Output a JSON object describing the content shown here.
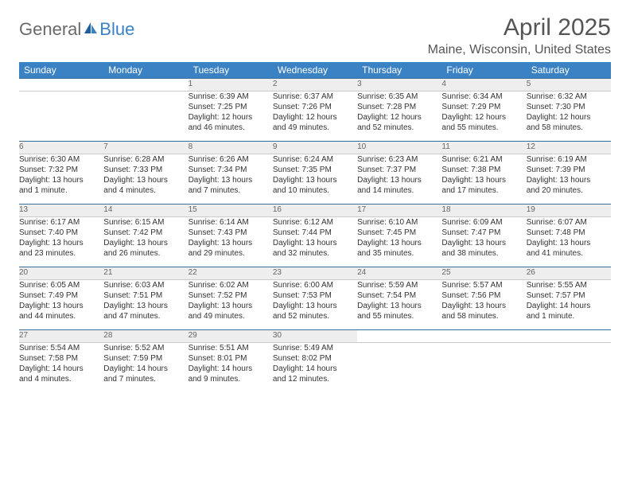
{
  "brand": {
    "general": "General",
    "blue": "Blue"
  },
  "title": "April 2025",
  "location": "Maine, Wisconsin, United States",
  "weekdays": [
    "Sunday",
    "Monday",
    "Tuesday",
    "Wednesday",
    "Thursday",
    "Friday",
    "Saturday"
  ],
  "colors": {
    "header_bg": "#3b82c4",
    "header_text": "#ffffff",
    "daynum_bg": "#eeeeee",
    "row_divider": "#3b6d99",
    "text": "#333333"
  },
  "weeks": [
    {
      "days": [
        null,
        null,
        {
          "n": "1",
          "sunrise": "Sunrise: 6:39 AM",
          "sunset": "Sunset: 7:25 PM",
          "day1": "Daylight: 12 hours",
          "day2": "and 46 minutes."
        },
        {
          "n": "2",
          "sunrise": "Sunrise: 6:37 AM",
          "sunset": "Sunset: 7:26 PM",
          "day1": "Daylight: 12 hours",
          "day2": "and 49 minutes."
        },
        {
          "n": "3",
          "sunrise": "Sunrise: 6:35 AM",
          "sunset": "Sunset: 7:28 PM",
          "day1": "Daylight: 12 hours",
          "day2": "and 52 minutes."
        },
        {
          "n": "4",
          "sunrise": "Sunrise: 6:34 AM",
          "sunset": "Sunset: 7:29 PM",
          "day1": "Daylight: 12 hours",
          "day2": "and 55 minutes."
        },
        {
          "n": "5",
          "sunrise": "Sunrise: 6:32 AM",
          "sunset": "Sunset: 7:30 PM",
          "day1": "Daylight: 12 hours",
          "day2": "and 58 minutes."
        }
      ]
    },
    {
      "days": [
        {
          "n": "6",
          "sunrise": "Sunrise: 6:30 AM",
          "sunset": "Sunset: 7:32 PM",
          "day1": "Daylight: 13 hours",
          "day2": "and 1 minute."
        },
        {
          "n": "7",
          "sunrise": "Sunrise: 6:28 AM",
          "sunset": "Sunset: 7:33 PM",
          "day1": "Daylight: 13 hours",
          "day2": "and 4 minutes."
        },
        {
          "n": "8",
          "sunrise": "Sunrise: 6:26 AM",
          "sunset": "Sunset: 7:34 PM",
          "day1": "Daylight: 13 hours",
          "day2": "and 7 minutes."
        },
        {
          "n": "9",
          "sunrise": "Sunrise: 6:24 AM",
          "sunset": "Sunset: 7:35 PM",
          "day1": "Daylight: 13 hours",
          "day2": "and 10 minutes."
        },
        {
          "n": "10",
          "sunrise": "Sunrise: 6:23 AM",
          "sunset": "Sunset: 7:37 PM",
          "day1": "Daylight: 13 hours",
          "day2": "and 14 minutes."
        },
        {
          "n": "11",
          "sunrise": "Sunrise: 6:21 AM",
          "sunset": "Sunset: 7:38 PM",
          "day1": "Daylight: 13 hours",
          "day2": "and 17 minutes."
        },
        {
          "n": "12",
          "sunrise": "Sunrise: 6:19 AM",
          "sunset": "Sunset: 7:39 PM",
          "day1": "Daylight: 13 hours",
          "day2": "and 20 minutes."
        }
      ]
    },
    {
      "days": [
        {
          "n": "13",
          "sunrise": "Sunrise: 6:17 AM",
          "sunset": "Sunset: 7:40 PM",
          "day1": "Daylight: 13 hours",
          "day2": "and 23 minutes."
        },
        {
          "n": "14",
          "sunrise": "Sunrise: 6:15 AM",
          "sunset": "Sunset: 7:42 PM",
          "day1": "Daylight: 13 hours",
          "day2": "and 26 minutes."
        },
        {
          "n": "15",
          "sunrise": "Sunrise: 6:14 AM",
          "sunset": "Sunset: 7:43 PM",
          "day1": "Daylight: 13 hours",
          "day2": "and 29 minutes."
        },
        {
          "n": "16",
          "sunrise": "Sunrise: 6:12 AM",
          "sunset": "Sunset: 7:44 PM",
          "day1": "Daylight: 13 hours",
          "day2": "and 32 minutes."
        },
        {
          "n": "17",
          "sunrise": "Sunrise: 6:10 AM",
          "sunset": "Sunset: 7:45 PM",
          "day1": "Daylight: 13 hours",
          "day2": "and 35 minutes."
        },
        {
          "n": "18",
          "sunrise": "Sunrise: 6:09 AM",
          "sunset": "Sunset: 7:47 PM",
          "day1": "Daylight: 13 hours",
          "day2": "and 38 minutes."
        },
        {
          "n": "19",
          "sunrise": "Sunrise: 6:07 AM",
          "sunset": "Sunset: 7:48 PM",
          "day1": "Daylight: 13 hours",
          "day2": "and 41 minutes."
        }
      ]
    },
    {
      "days": [
        {
          "n": "20",
          "sunrise": "Sunrise: 6:05 AM",
          "sunset": "Sunset: 7:49 PM",
          "day1": "Daylight: 13 hours",
          "day2": "and 44 minutes."
        },
        {
          "n": "21",
          "sunrise": "Sunrise: 6:03 AM",
          "sunset": "Sunset: 7:51 PM",
          "day1": "Daylight: 13 hours",
          "day2": "and 47 minutes."
        },
        {
          "n": "22",
          "sunrise": "Sunrise: 6:02 AM",
          "sunset": "Sunset: 7:52 PM",
          "day1": "Daylight: 13 hours",
          "day2": "and 49 minutes."
        },
        {
          "n": "23",
          "sunrise": "Sunrise: 6:00 AM",
          "sunset": "Sunset: 7:53 PM",
          "day1": "Daylight: 13 hours",
          "day2": "and 52 minutes."
        },
        {
          "n": "24",
          "sunrise": "Sunrise: 5:59 AM",
          "sunset": "Sunset: 7:54 PM",
          "day1": "Daylight: 13 hours",
          "day2": "and 55 minutes."
        },
        {
          "n": "25",
          "sunrise": "Sunrise: 5:57 AM",
          "sunset": "Sunset: 7:56 PM",
          "day1": "Daylight: 13 hours",
          "day2": "and 58 minutes."
        },
        {
          "n": "26",
          "sunrise": "Sunrise: 5:55 AM",
          "sunset": "Sunset: 7:57 PM",
          "day1": "Daylight: 14 hours",
          "day2": "and 1 minute."
        }
      ]
    },
    {
      "days": [
        {
          "n": "27",
          "sunrise": "Sunrise: 5:54 AM",
          "sunset": "Sunset: 7:58 PM",
          "day1": "Daylight: 14 hours",
          "day2": "and 4 minutes."
        },
        {
          "n": "28",
          "sunrise": "Sunrise: 5:52 AM",
          "sunset": "Sunset: 7:59 PM",
          "day1": "Daylight: 14 hours",
          "day2": "and 7 minutes."
        },
        {
          "n": "29",
          "sunrise": "Sunrise: 5:51 AM",
          "sunset": "Sunset: 8:01 PM",
          "day1": "Daylight: 14 hours",
          "day2": "and 9 minutes."
        },
        {
          "n": "30",
          "sunrise": "Sunrise: 5:49 AM",
          "sunset": "Sunset: 8:02 PM",
          "day1": "Daylight: 14 hours",
          "day2": "and 12 minutes."
        },
        null,
        null,
        null
      ]
    }
  ]
}
